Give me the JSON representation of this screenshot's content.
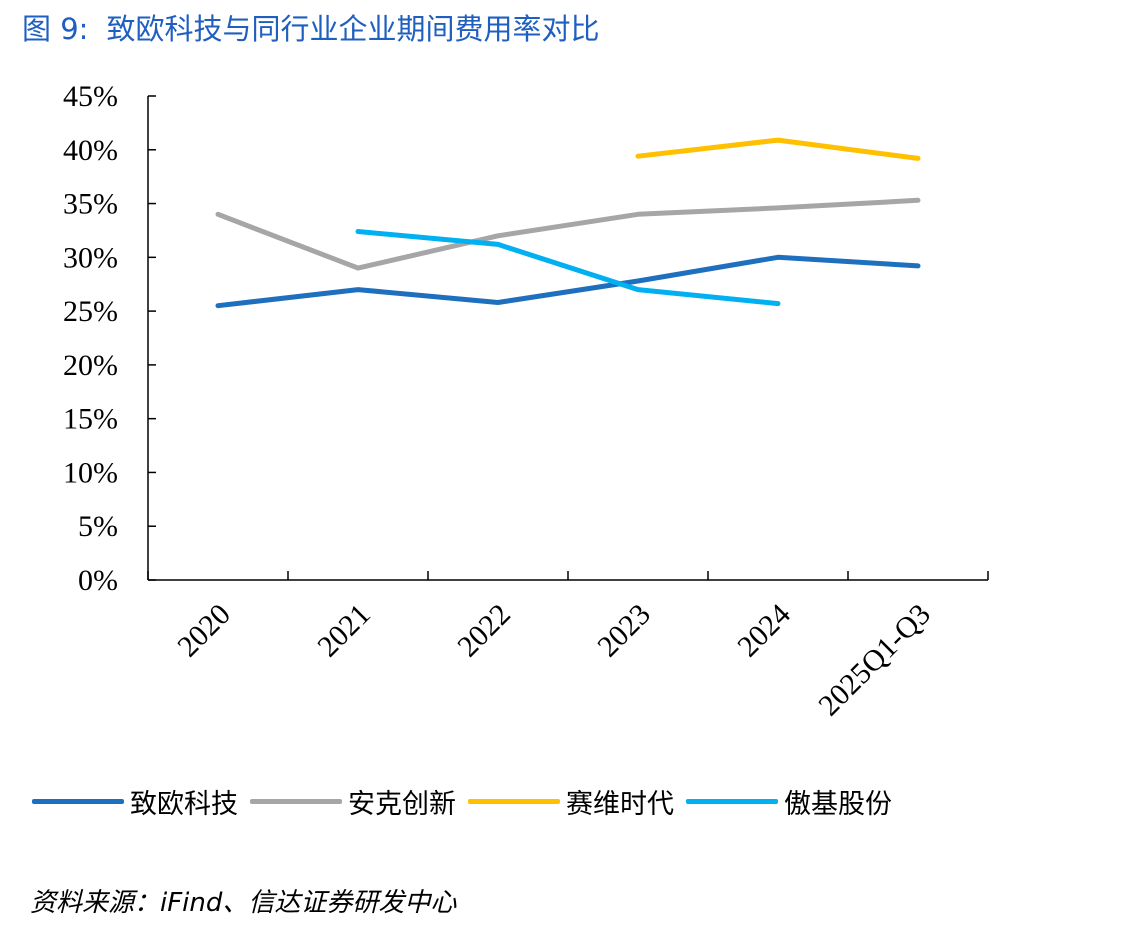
{
  "header": {
    "figure_no": "图 9:",
    "title": "致欧科技与同行业企业期间费用率对比"
  },
  "source": "资料来源：iFind、信达证券研发中心",
  "chart_data": {
    "type": "line",
    "categories": [
      "2020",
      "2021",
      "2022",
      "2023",
      "2024",
      "2025Q1-Q3"
    ],
    "y_ticks": [
      "0%",
      "5%",
      "10%",
      "15%",
      "20%",
      "25%",
      "30%",
      "35%",
      "40%",
      "45%"
    ],
    "ylim": [
      0,
      45
    ],
    "grid": false,
    "legend_position": "bottom",
    "series": [
      {
        "name": "致欧科技",
        "color": "#1f6fbf",
        "values": [
          25.5,
          27.0,
          25.8,
          27.8,
          30.0,
          29.2
        ]
      },
      {
        "name": "安克创新",
        "color": "#a6a6a6",
        "values": [
          34.0,
          29.0,
          32.0,
          34.0,
          34.6,
          35.3
        ]
      },
      {
        "name": "赛维时代",
        "color": "#ffc000",
        "values": [
          null,
          null,
          null,
          39.4,
          40.9,
          39.2
        ]
      },
      {
        "name": "傲基股份",
        "color": "#00b0f0",
        "values": [
          null,
          32.4,
          31.2,
          27.0,
          25.7,
          null
        ]
      }
    ]
  }
}
